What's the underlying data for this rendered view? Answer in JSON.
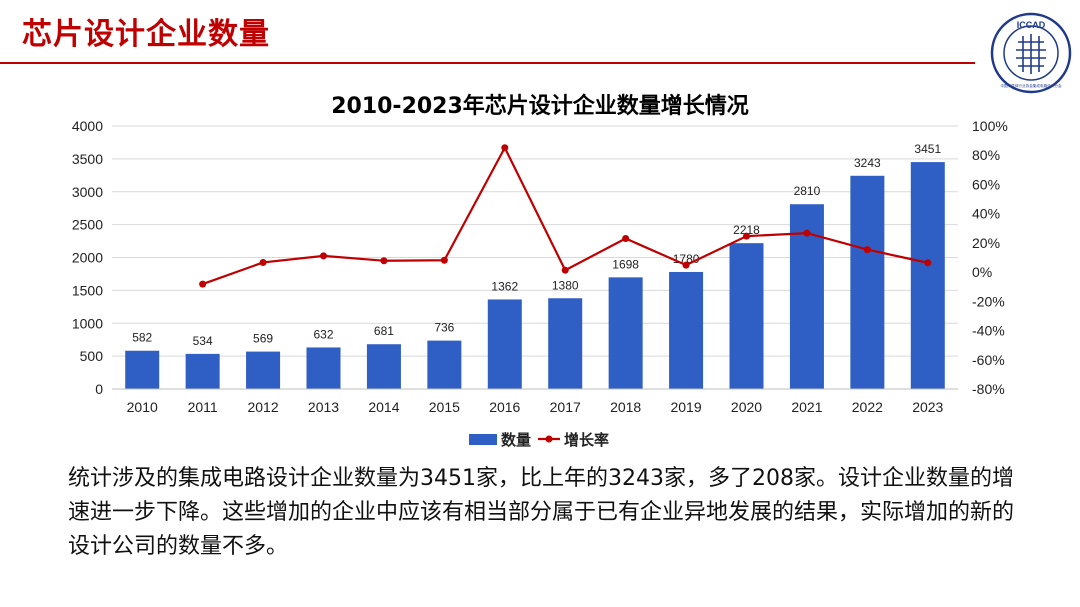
{
  "slide": {
    "title": "芯片设计企业数量",
    "logo_text": "ICCAD",
    "logo_ring_text": "中国半导体行业协会集成电路设计分会",
    "body_text": "统计涉及的集成电路设计企业数量为3451家，比上年的3243家，多了208家。设计企业数量的增速进一步下降。这些增加的企业中应该有相当部分属于已有企业异地发展的结果，实际增加的新的设计公司的数量不多。"
  },
  "colors": {
    "title": "#c00000",
    "bar": "#2f5ec4",
    "line": "#c00000",
    "grid": "#d9d9d9"
  },
  "chart_data": {
    "type": "bar",
    "title": "2010-2023年芯片设计企业数量增长情况",
    "categories": [
      "2010",
      "2011",
      "2012",
      "2013",
      "2014",
      "2015",
      "2016",
      "2017",
      "2018",
      "2019",
      "2020",
      "2021",
      "2022",
      "2023"
    ],
    "series": [
      {
        "name": "数量",
        "type": "bar",
        "axis": "left",
        "values": [
          582,
          534,
          569,
          632,
          681,
          736,
          1362,
          1380,
          1698,
          1780,
          2218,
          2810,
          3243,
          3451
        ],
        "data_labels": [
          "582",
          "534",
          "569",
          "632",
          "681",
          "736",
          "1362",
          "1380",
          "1698",
          "1780",
          "2218",
          "2810",
          "3243",
          "3451"
        ]
      },
      {
        "name": "增长率",
        "type": "line",
        "axis": "right",
        "values": [
          null,
          -8.2,
          6.6,
          11.1,
          7.8,
          8.1,
          85.1,
          1.3,
          23.0,
          4.8,
          24.6,
          26.7,
          15.4,
          6.4
        ]
      }
    ],
    "y_left": {
      "ylim": [
        0,
        4000
      ],
      "ticks": [
        "0",
        "500",
        "1000",
        "1500",
        "2000",
        "2500",
        "3000",
        "3500",
        "4000"
      ]
    },
    "y_right": {
      "ylim": [
        -80,
        100
      ],
      "ticks": [
        "-80%",
        "-60%",
        "-40%",
        "-20%",
        "0%",
        "20%",
        "40%",
        "60%",
        "80%",
        "100%"
      ]
    },
    "grid": true,
    "legend_position": "bottom"
  }
}
